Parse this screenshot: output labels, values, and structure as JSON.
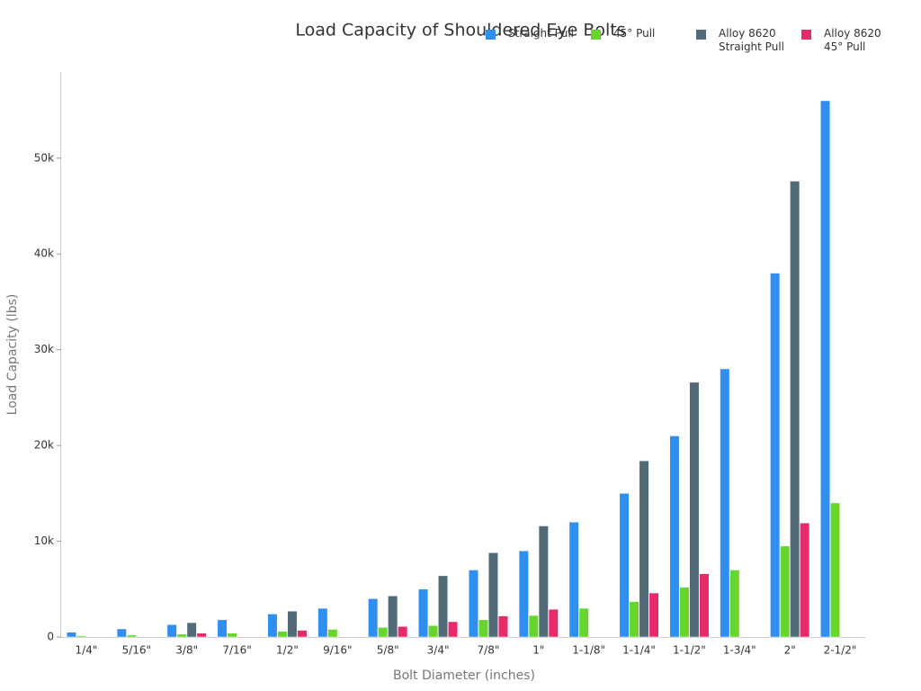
{
  "chart_data": {
    "type": "bar",
    "title": "Load Capacity of Shouldered Eye Bolts",
    "x_label": "Bolt Diameter (inches)",
    "y_label": "Load Capacity (lbs)",
    "categories": [
      "1/4\"",
      "5/16\"",
      "3/8\"",
      "7/16\"",
      "1/2\"",
      "9/16\"",
      "5/8\"",
      "3/4\"",
      "7/8\"",
      "1\"",
      "1-1/8\"",
      "1-1/4\"",
      "1-1/2\"",
      "1-3/4\"",
      "2\"",
      "2-1/2\""
    ],
    "series": [
      {
        "name": "Straight Pull",
        "color": "#2f8ff0",
        "values": [
          500,
          850,
          1300,
          1800,
          2400,
          3000,
          4000,
          5000,
          7000,
          9000,
          12000,
          15000,
          21000,
          28000,
          38000,
          56000
        ]
      },
      {
        "name": "45° Pull",
        "color": "#66d62a",
        "values": [
          125,
          200,
          300,
          400,
          600,
          800,
          1000,
          1200,
          1800,
          2250,
          3000,
          3700,
          5200,
          7000,
          9500,
          14000
        ]
      },
      {
        "name": "Alloy 8620 Straight Pull",
        "color": "#526b78",
        "values": [
          null,
          null,
          1500,
          null,
          2700,
          null,
          4300,
          6400,
          8800,
          11600,
          null,
          18400,
          26600,
          null,
          47600,
          null
        ]
      },
      {
        "name": "Alloy 8620 45° Pull",
        "color": "#e8296a",
        "values": [
          null,
          null,
          400,
          null,
          700,
          null,
          1100,
          1600,
          2200,
          2900,
          null,
          4600,
          6600,
          null,
          11900,
          null
        ]
      }
    ],
    "ylim": [
      0,
      59000
    ],
    "yticks": [
      0,
      {
        "value": 10000,
        "label": "10k"
      },
      {
        "value": 20000,
        "label": "20k"
      },
      {
        "value": 30000,
        "label": "30k"
      },
      {
        "value": 40000,
        "label": "40k"
      },
      {
        "value": 50000,
        "label": "50k"
      }
    ],
    "grid": false,
    "legend": "top-right"
  }
}
